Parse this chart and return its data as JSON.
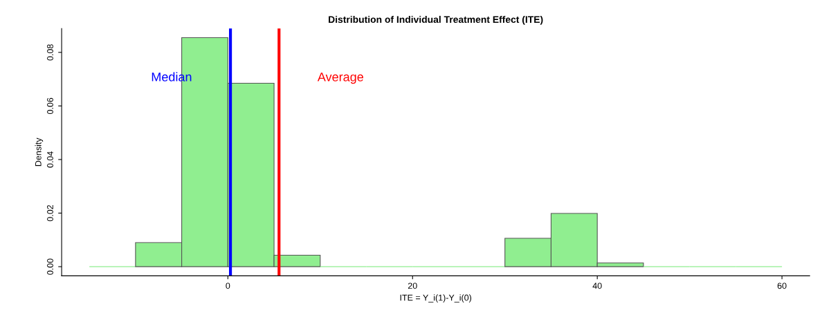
{
  "chart_data": {
    "type": "histogram",
    "title": "Distribution of Individual Treatment Effect (ITE)",
    "xlabel": "ITE = Y_i(1)-Y_i(0)",
    "ylabel": "Density",
    "bins": [
      -15,
      -10,
      -5,
      0,
      5,
      10,
      15,
      20,
      25,
      30,
      35,
      40,
      45,
      50,
      55,
      60
    ],
    "values": [
      0,
      0.009,
      0.0855,
      0.0685,
      0.0043,
      0,
      0,
      0,
      0,
      0.0106,
      0.0199,
      0.0014,
      0,
      0,
      0
    ],
    "color": "#90ee90",
    "xlim": [
      -18,
      63
    ],
    "xticks": [
      0,
      20,
      40,
      60
    ],
    "ylim": [
      -0.0034,
      0.0889
    ],
    "yticks": [
      {
        "value": 0,
        "label": "0.00"
      },
      {
        "value": 0.02,
        "label": "0.02"
      },
      {
        "value": 0.04,
        "label": "0.04"
      },
      {
        "value": 0.06,
        "label": "0.06"
      },
      {
        "value": 0.08,
        "label": "0.08"
      }
    ],
    "ref_lines": [
      {
        "axis": "x",
        "value": 0.28,
        "label": "Median",
        "color": "#0000ff"
      },
      {
        "axis": "x",
        "value": 5.54,
        "label": "Average",
        "color": "#ff0000"
      }
    ],
    "grid": false,
    "legend": false
  }
}
